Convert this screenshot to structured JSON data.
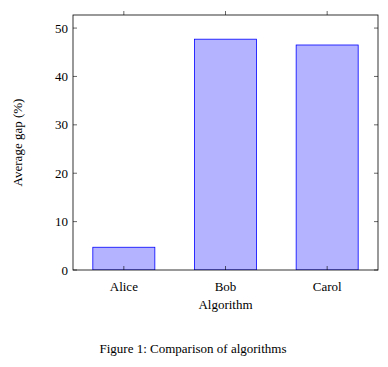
{
  "chart_data": {
    "type": "bar",
    "title": "Figure 1: Comparison of algorithms",
    "x_label": "Algorithm",
    "y_label": "Average gap (%)",
    "categories": [
      "Alice",
      "Bob",
      "Carol"
    ],
    "values": [
      4.7,
      47.7,
      46.5
    ],
    "color": "#b3b3ff",
    "ylim": [
      0,
      52.7
    ],
    "yticks": [
      0,
      10,
      20,
      30,
      40,
      50
    ],
    "grid": false
  }
}
